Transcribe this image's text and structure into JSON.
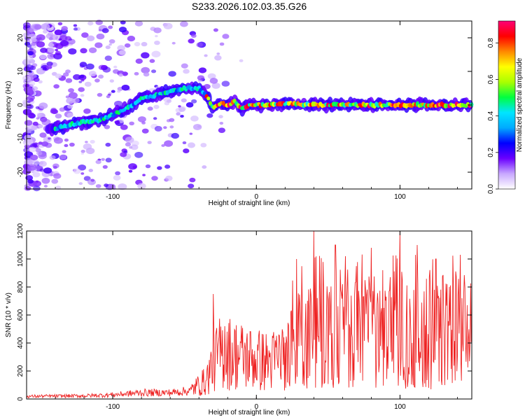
{
  "title": "S233.2026.102.03.35.G26",
  "chart_data": [
    {
      "type": "heatmap",
      "name": "spectrogram",
      "xlabel": "Height of straight line (km)",
      "ylabel": "Frequency (Hz)",
      "xlim": [
        -160,
        150
      ],
      "ylim": [
        -25,
        25
      ],
      "xticks": [
        -100,
        0,
        100
      ],
      "xtick_labels": [
        "-100",
        "0",
        "100"
      ],
      "yticks": [
        -20,
        -10,
        0,
        10,
        20
      ],
      "ytick_labels": [
        "-20",
        "-10",
        "0",
        "10",
        "20"
      ],
      "ridge": {
        "x": [
          -160,
          -140,
          -120,
          -110,
          -100,
          -90,
          -80,
          -70,
          -60,
          -50,
          -40,
          -35,
          -30,
          -25,
          -20,
          -15,
          -10,
          -5,
          0,
          10,
          20,
          40,
          60,
          80,
          100,
          120,
          150
        ],
        "y": [
          -8,
          -7,
          -5,
          -4.5,
          -3,
          -1,
          2,
          3,
          4,
          5,
          5,
          3,
          -1,
          0.5,
          0,
          1,
          -1,
          0,
          0,
          0,
          0.5,
          0,
          0,
          0,
          0,
          0,
          0
        ]
      },
      "colorbar": {
        "label": "Normalized spectral amplitude",
        "range": [
          0.0,
          0.92
        ],
        "ticks": [
          0.0,
          0.2,
          0.4,
          0.6,
          0.8
        ],
        "tick_labels": [
          "0.0",
          "0.2",
          "0.4",
          "0.6",
          "0.8"
        ],
        "colors": [
          "#ffffff",
          "#c8a8ff",
          "#6a00ff",
          "#0000ff",
          "#00aaff",
          "#00e5ff",
          "#00ff40",
          "#aaff00",
          "#ffff00",
          "#ff8800",
          "#ff0000",
          "#ff0077"
        ]
      }
    },
    {
      "type": "line",
      "name": "snr",
      "xlabel": "Height of straight line (km)",
      "ylabel": "SNR (10 * v/v)",
      "xlim": [
        -160,
        150
      ],
      "ylim": [
        0,
        1200
      ],
      "xticks": [
        -100,
        0,
        100
      ],
      "xtick_labels": [
        "-100",
        "0",
        "100"
      ],
      "yticks": [
        0,
        200,
        400,
        600,
        800,
        1000,
        1200
      ],
      "ytick_labels": [
        "0",
        "200",
        "400",
        "600",
        "800",
        "1000",
        "1200"
      ],
      "color": "#ee2222",
      "envelope": {
        "x": [
          -160,
          -120,
          -100,
          -80,
          -60,
          -45,
          -35,
          -30,
          -25,
          -20,
          -10,
          0,
          10,
          20,
          30,
          40,
          60,
          80,
          100,
          120,
          150
        ],
        "y": [
          25,
          30,
          40,
          60,
          60,
          80,
          150,
          300,
          380,
          380,
          350,
          320,
          300,
          380,
          480,
          520,
          520,
          520,
          520,
          520,
          520
        ]
      },
      "spikes": [
        {
          "x": -30,
          "y": 750
        },
        {
          "x": -22,
          "y": 520
        },
        {
          "x": 28,
          "y": 1000
        },
        {
          "x": 40,
          "y": 1200
        },
        {
          "x": 55,
          "y": 1100
        },
        {
          "x": 62,
          "y": 1020
        },
        {
          "x": 80,
          "y": 1080
        },
        {
          "x": 88,
          "y": 920
        },
        {
          "x": 100,
          "y": 1200
        },
        {
          "x": 112,
          "y": 1100
        },
        {
          "x": 125,
          "y": 1000
        },
        {
          "x": 142,
          "y": 1030
        }
      ]
    }
  ]
}
